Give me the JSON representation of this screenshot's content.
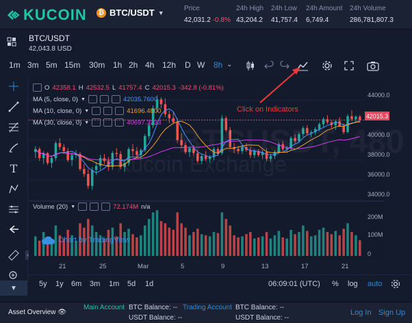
{
  "header": {
    "logo_text": "KUCOIN",
    "pair": "BTC/USDT",
    "stats": [
      {
        "label": "Price",
        "value": "42,031.2",
        "change": "-0.8%"
      },
      {
        "label": "24h High",
        "value": "43,204.2"
      },
      {
        "label": "24h Low",
        "value": "41,757.4"
      },
      {
        "label": "24h Amount",
        "value": "6,749.4"
      },
      {
        "label": "24h Volume",
        "value": "286,781,807.3"
      }
    ]
  },
  "subheader": {
    "pair": "BTC/USDT",
    "price": "42,043.8 USD"
  },
  "timeframes": [
    "1m",
    "3m",
    "5m",
    "15m",
    "30m",
    "1h",
    "2h",
    "4h",
    "12h",
    "D",
    "W",
    "8h"
  ],
  "active_timeframe": "8h",
  "legend": {
    "ohlc": {
      "o_label": "O",
      "o": "42358.1",
      "h_label": "H",
      "h": "42532.5",
      "l_label": "L",
      "l": "41757.4",
      "c_label": "C",
      "c": "42015.3",
      "chg": "-342.8 (-0.81%)"
    },
    "ma": [
      {
        "label": "MA (5, close, 0)",
        "value": "42035.7600",
        "color": "#4e8fff"
      },
      {
        "label": "MA (10, close, 0)",
        "value": "41696.4800",
        "color": "#f0a030"
      },
      {
        "label": "MA (30, close, 0)",
        "value": "40697.3233",
        "color": "#d63cf0"
      }
    ],
    "volume": {
      "label": "Volume (20)",
      "value": "72.174M",
      "extra": "n/a"
    }
  },
  "y_axis": [
    "44000.0",
    "42000.0",
    "40000.0",
    "38000.0",
    "36000.0",
    "34000.0"
  ],
  "current_price": "42015.3",
  "vol_axis": [
    "200M",
    "100M",
    "0"
  ],
  "x_axis": [
    "21",
    "25",
    "Mar",
    "5",
    "9",
    "13",
    "17",
    "21"
  ],
  "annotation": "Click on Indicators",
  "watermark": {
    "line1": "BTCUSDT, 480",
    "line2": "Kucoin Exchange"
  },
  "tv_badge": "Chart by TradingView",
  "bottom_toolbar": {
    "ranges": [
      "5y",
      "1y",
      "6m",
      "3m",
      "1m",
      "5d",
      "1d"
    ],
    "time": "06:09:01 (UTC)",
    "pct": "%",
    "log": "log",
    "auto": "auto"
  },
  "footer": {
    "asset_overview": "Asset Overview",
    "main_account": "Main Account",
    "btc_balance": "BTC Balance: --",
    "usdt_balance": "USDT Balance: --",
    "trading_account": "Trading Account",
    "btc_balance2": "BTC Balance: --",
    "usdt_balance2": "USDT Balance: --",
    "login": "Log In",
    "signup": "Sign Up"
  },
  "colors": {
    "up": "#26a69a",
    "down": "#ef5350",
    "accent": "#22c6a4",
    "annotation": "#f03a3a"
  },
  "chart_data": {
    "type": "candlestick",
    "x_ticks": [
      "21",
      "25",
      "Mar",
      "5",
      "9",
      "13",
      "17",
      "21"
    ],
    "ylim": [
      34000,
      45000
    ],
    "price_ticks": [
      44000,
      42000,
      40000,
      38000,
      36000,
      34000
    ],
    "candles": [
      [
        38800,
        39400,
        38200,
        39100
      ],
      [
        39100,
        39300,
        37900,
        38200
      ],
      [
        38200,
        38900,
        37600,
        38700
      ],
      [
        38700,
        38800,
        37500,
        37700
      ],
      [
        37700,
        38400,
        37200,
        38200
      ],
      [
        38200,
        39900,
        37900,
        39700
      ],
      [
        39700,
        40200,
        39000,
        39300
      ],
      [
        39300,
        39600,
        38600,
        38900
      ],
      [
        38900,
        39200,
        37800,
        38000
      ],
      [
        38000,
        38800,
        37400,
        38500
      ],
      [
        38500,
        39000,
        38200,
        38600
      ],
      [
        38600,
        38800,
        36900,
        37100
      ],
      [
        37100,
        37600,
        36300,
        36600
      ],
      [
        36600,
        37100,
        35100,
        35400
      ],
      [
        35400,
        37300,
        35000,
        37000
      ],
      [
        37000,
        37800,
        36500,
        37400
      ],
      [
        37400,
        38500,
        37000,
        38200
      ],
      [
        38200,
        38600,
        37600,
        37900
      ],
      [
        37900,
        38300,
        36900,
        37300
      ],
      [
        37300,
        38900,
        37000,
        38700
      ],
      [
        38700,
        39200,
        38300,
        38600
      ],
      [
        38600,
        38900,
        37100,
        37300
      ],
      [
        37300,
        37900,
        36800,
        37700
      ],
      [
        37700,
        39300,
        37400,
        39100
      ],
      [
        39100,
        39600,
        38400,
        38900
      ],
      [
        38900,
        39300,
        38200,
        38500
      ],
      [
        38500,
        39200,
        38100,
        39000
      ],
      [
        39000,
        40600,
        38800,
        40400
      ],
      [
        40400,
        41700,
        40100,
        41500
      ],
      [
        41500,
        43500,
        41200,
        43200
      ],
      [
        43200,
        44500,
        42800,
        44100
      ],
      [
        44100,
        44300,
        43200,
        43600
      ],
      [
        43600,
        44200,
        42300,
        42600
      ],
      [
        42600,
        43000,
        41700,
        42200
      ],
      [
        42200,
        42800,
        41600,
        41800
      ],
      [
        41800,
        42200,
        39700,
        40000
      ],
      [
        40000,
        40700,
        39200,
        39500
      ],
      [
        39500,
        39800,
        38600,
        38800
      ],
      [
        38800,
        39400,
        38300,
        39200
      ],
      [
        39200,
        39500,
        38400,
        38700
      ],
      [
        38700,
        39000,
        37700,
        37900
      ],
      [
        37900,
        38600,
        37600,
        38400
      ],
      [
        38400,
        38900,
        37900,
        38100
      ],
      [
        38100,
        38500,
        37700,
        38300
      ],
      [
        38300,
        39300,
        38000,
        39100
      ],
      [
        39100,
        39300,
        38400,
        38700
      ],
      [
        38700,
        42500,
        38500,
        42200
      ],
      [
        42200,
        42400,
        40800,
        41000
      ],
      [
        41000,
        41300,
        39100,
        39300
      ],
      [
        39300,
        39700,
        38700,
        39100
      ],
      [
        39100,
        39400,
        38600,
        38900
      ],
      [
        38900,
        39500,
        38600,
        39300
      ],
      [
        39300,
        39700,
        38800,
        39000
      ],
      [
        39000,
        39300,
        38200,
        38500
      ],
      [
        38500,
        39100,
        38200,
        38900
      ],
      [
        38900,
        39100,
        38300,
        38500
      ],
      [
        38500,
        39000,
        38100,
        38800
      ],
      [
        38800,
        39200,
        37900,
        38100
      ],
      [
        38100,
        38600,
        37800,
        38400
      ],
      [
        38400,
        39000,
        38100,
        38800
      ],
      [
        38800,
        39800,
        38600,
        39600
      ],
      [
        39600,
        39900,
        38900,
        39100
      ],
      [
        39100,
        39400,
        38700,
        39200
      ],
      [
        39200,
        40400,
        39000,
        40200
      ],
      [
        40200,
        40600,
        39700,
        39900
      ],
      [
        39900,
        40800,
        39700,
        40600
      ],
      [
        40600,
        41400,
        40300,
        41200
      ],
      [
        41200,
        41500,
        40500,
        40700
      ],
      [
        40700,
        41000,
        40300,
        40800
      ],
      [
        40800,
        41300,
        40500,
        41100
      ],
      [
        41100,
        41800,
        40900,
        41600
      ],
      [
        41600,
        42300,
        41300,
        42100
      ],
      [
        42100,
        42500,
        41600,
        41800
      ],
      [
        41800,
        42000,
        41200,
        41500
      ],
      [
        41500,
        42000,
        41000,
        41900
      ],
      [
        41900,
        42300,
        41300,
        41400
      ],
      [
        41400,
        41700,
        40600,
        40800
      ],
      [
        40800,
        42600,
        40700,
        42400
      ],
      [
        42400,
        43000,
        41900,
        42100
      ],
      [
        42100,
        42500,
        41700,
        42358
      ],
      [
        42358,
        42532,
        41757,
        42015
      ]
    ],
    "volumes": [
      90,
      70,
      110,
      85,
      75,
      140,
      95,
      80,
      120,
      95,
      70,
      150,
      130,
      170,
      140,
      110,
      95,
      80,
      120,
      130,
      90,
      150,
      110,
      125,
      100,
      85,
      95,
      140,
      170,
      200,
      210,
      160,
      150,
      130,
      120,
      200,
      150,
      130,
      95,
      110,
      125,
      100,
      95,
      90,
      110,
      105,
      200,
      170,
      140,
      95,
      85,
      90,
      100,
      110,
      80,
      85,
      90,
      110,
      80,
      95,
      115,
      85,
      80,
      120,
      100,
      110,
      140,
      115,
      90,
      95,
      120,
      130,
      110,
      100,
      115,
      95,
      125,
      150,
      110,
      95,
      72
    ]
  }
}
